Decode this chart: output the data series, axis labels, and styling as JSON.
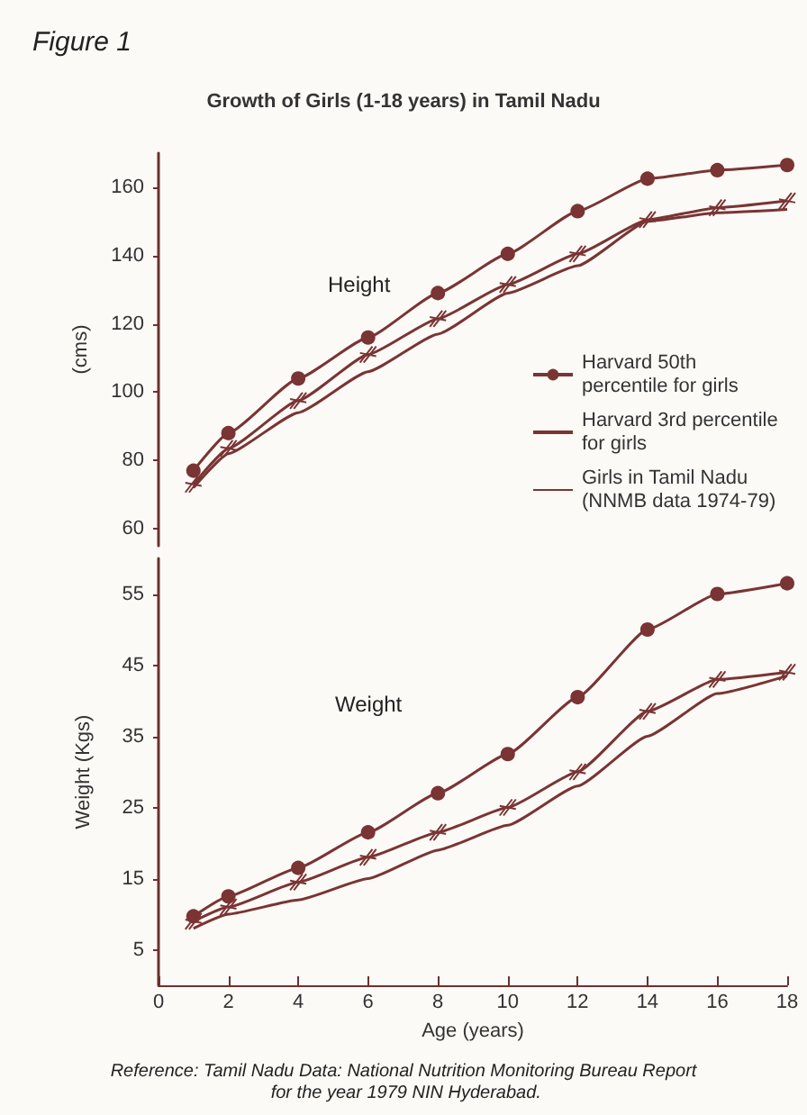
{
  "chart_data": [
    {
      "type": "line",
      "title": "Growth of Girls (1-18 years) in Tamil Nadu",
      "ylabel": "(cms)",
      "annotations": [
        "Figure 1",
        "Height"
      ],
      "xlim": [
        0,
        18
      ],
      "ylim": [
        55,
        170
      ],
      "yticks": [
        60,
        80,
        100,
        120,
        140,
        160
      ],
      "tick_labels": "y",
      "grid": false,
      "legend": "right",
      "x": [
        1,
        2,
        4,
        6,
        8,
        10,
        12,
        14,
        16,
        18
      ],
      "series": [
        {
          "name": "Harvard 50th percentile for girls",
          "color": "#7a3434",
          "marker": "circle",
          "values": [
            77,
            88,
            104,
            116,
            129,
            140.5,
            153,
            162.5,
            165,
            166.5
          ]
        },
        {
          "name": "Harvard 3rd percentile for girls",
          "color": "#7a3434",
          "marker": "cross",
          "values": [
            73,
            83.5,
            97.5,
            111,
            121.5,
            131.5,
            140.5,
            150.5,
            154,
            156
          ]
        },
        {
          "name": "Girls in Tamil Nadu (NNMB data 1974-79)",
          "color": "#7a3434",
          "marker": "none",
          "values": [
            72,
            82,
            94,
            106,
            117,
            129,
            137,
            150,
            152.5,
            153.5
          ]
        }
      ]
    },
    {
      "type": "line",
      "xlabel": "Age (years)",
      "ylabel": "Weight (Kgs)",
      "annotations": [
        "Weight",
        "Reference: Tamil Nadu Data: National Nutrition Monitoring Bureau Report for the year 1979 NIN Hyderabad."
      ],
      "xlim": [
        0,
        18
      ],
      "xticks": [
        0,
        2,
        4,
        6,
        8,
        10,
        12,
        14,
        16,
        18
      ],
      "ylim": [
        0,
        60
      ],
      "yticks": [
        5,
        15,
        25,
        35,
        45,
        55
      ],
      "grid": false,
      "legend": false,
      "x": [
        1,
        2,
        4,
        6,
        8,
        10,
        12,
        14,
        16,
        18
      ],
      "series": [
        {
          "color": "#7a3434",
          "marker": "circle",
          "values": [
            9.7,
            12.5,
            16.5,
            21.5,
            27,
            32.5,
            40.5,
            50,
            55,
            56.5
          ]
        },
        {
          "color": "#7a3434",
          "marker": "cross",
          "values": [
            9,
            11,
            14.5,
            18,
            21.5,
            25,
            30,
            38.5,
            43,
            44
          ]
        },
        {
          "color": "#7a3434",
          "marker": "none",
          "values": [
            8,
            10,
            12,
            15,
            19,
            22.5,
            28,
            35,
            41,
            43.5
          ]
        }
      ]
    }
  ]
}
